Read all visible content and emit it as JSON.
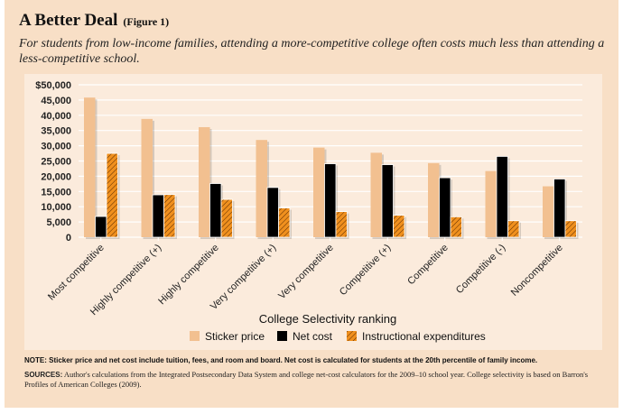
{
  "header": {
    "title": "A Better Deal",
    "figure_label": "(Figure 1)",
    "subtitle": "For students from low-income families, attending a more-competitive college often costs much less than attending a less-competitive school."
  },
  "footer": {
    "note": "NOTE: Sticker price and net cost include tuition, fees, and room and board. Net cost is calculated for students at the 20th percentile of family income.",
    "sources_label": "SOURCES:",
    "sources": "Author's calculations from the Integrated Postsecondary Data System and college net-cost calculators for the 2009–10 school year. College selectivity is based on Barron's Profiles of American Colleges (2009)."
  },
  "chart_data": {
    "type": "bar",
    "title": "",
    "xlabel": "College Selectivity ranking",
    "ylabel": "",
    "ylim": [
      0,
      50000
    ],
    "yticks": [
      "0",
      "5,000",
      "10,000",
      "15,000",
      "20,000",
      "25,000",
      "30,000",
      "35,000",
      "40,000",
      "45,000",
      "$50,000"
    ],
    "grid": true,
    "legend_position": "bottom",
    "categories": [
      "Most competitive",
      "Highly competitive (+)",
      "Highly competitive",
      "Very competitive (+)",
      "Very competitive",
      "Competitive (+)",
      "Competitive",
      "Competitive (-)",
      "Noncompetitive"
    ],
    "series": [
      {
        "name": "Sticker price",
        "color": "#f2c090",
        "values": [
          45800,
          38800,
          36100,
          31900,
          29400,
          27700,
          24300,
          21700,
          16700
        ]
      },
      {
        "name": "Net cost",
        "color": "#000000",
        "values": [
          6800,
          13900,
          17600,
          16300,
          24100,
          23800,
          19500,
          26500,
          19100
        ]
      },
      {
        "name": "Instructional expenditures",
        "color": "#f0901e",
        "pattern": "hatched",
        "values": [
          27500,
          14000,
          12400,
          9600,
          8400,
          7200,
          6700,
          5400,
          5400
        ]
      }
    ]
  }
}
